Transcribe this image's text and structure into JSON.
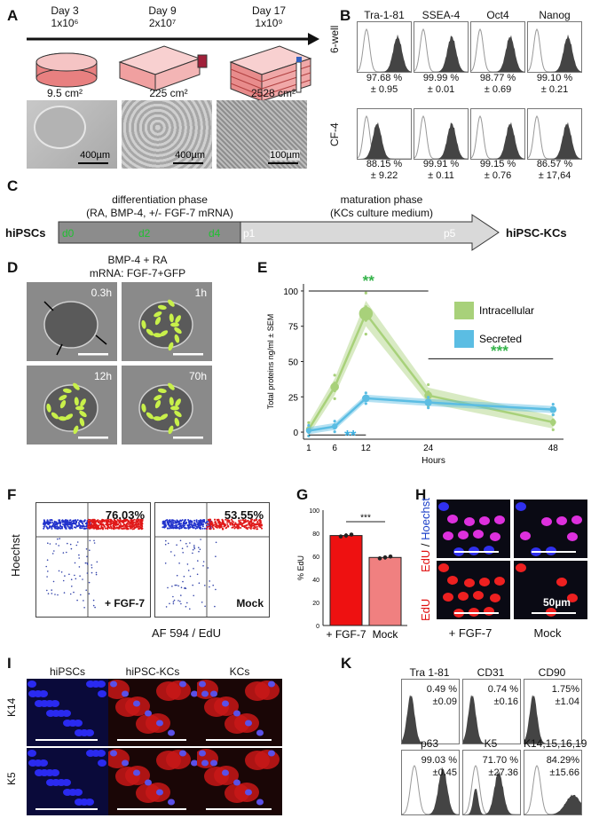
{
  "panels": {
    "A": "A",
    "B": "B",
    "C": "C",
    "D": "D",
    "E": "E",
    "F": "F",
    "G": "G",
    "H": "H",
    "I": "I",
    "K": "K"
  },
  "A": {
    "days": [
      {
        "day": "Day 3",
        "count": "1x10⁶",
        "area": "9.5 cm²",
        "scale": "400µm"
      },
      {
        "day": "Day 9",
        "count": "2x10⁷",
        "area": "225 cm²",
        "scale": "400µm"
      },
      {
        "day": "Day 17",
        "count": "1x10⁹",
        "area": "2528 cm²",
        "scale": "100µm"
      }
    ]
  },
  "B": {
    "markers": [
      "Tra-1-81",
      "SSEA-4",
      "Oct4",
      "Nanog"
    ],
    "rows": [
      {
        "label": "6-well",
        "values": [
          [
            "97.68 %",
            "± 0.95"
          ],
          [
            "99.99 %",
            "± 0.01"
          ],
          [
            "98.77 %",
            "± 0.69"
          ],
          [
            "99.10 %",
            "± 0.21"
          ]
        ]
      },
      {
        "label": "CF-4",
        "values": [
          [
            "88.15 %",
            "± 9.22"
          ],
          [
            "99.91 %",
            "± 0.11"
          ],
          [
            "99.15 %",
            "± 0.76"
          ],
          [
            "86.57 %",
            "± 17,64"
          ]
        ]
      }
    ]
  },
  "C": {
    "start": "hiPSCs",
    "end": "hiPSC-KCs",
    "phase1": "differentiation phase",
    "phase1_sub": "(RA, BMP-4, +/- FGF-7 mRNA)",
    "phase2": "maturation phase",
    "phase2_sub": "(KCs culture medium)",
    "marks": [
      "d0",
      "d2",
      "d4",
      "p1",
      "p5"
    ]
  },
  "D": {
    "title1": "BMP-4 + RA",
    "title2": "mRNA: FGF-7+GFP",
    "times": [
      "0.3h",
      "1h",
      "12h",
      "70h"
    ]
  },
  "E": {
    "ylabel": "Total proteins ng/ml ± SEM",
    "xlabel": "Hours",
    "sig_top": "**",
    "sig_bottom": "**",
    "sig_right": "***"
  },
  "F": {
    "ylabel": "Hoechst",
    "xlabel": "AF 594 / EdU",
    "plots": [
      {
        "pct": "76.03%",
        "cond": "+ FGF-7"
      },
      {
        "pct": "53.55%",
        "cond": "Mock"
      }
    ]
  },
  "G": {
    "ylabel": "% EdU",
    "sig": "***",
    "cats": [
      "+ FGF-7",
      "Mock"
    ]
  },
  "H": {
    "label_top_a": "EdU",
    "label_top_b": " / ",
    "label_top_c": "Hoechst",
    "label_bottom": "EdU",
    "scale": "50µm",
    "cats": [
      "+ FGF-7",
      "Mock"
    ]
  },
  "I": {
    "cols": [
      "hiPSCs",
      "hiPSC-KCs",
      "KCs"
    ],
    "rows": [
      "K14",
      "K5"
    ]
  },
  "K": {
    "panels": [
      {
        "name": "Tra 1-81",
        "v": "0.49 %",
        "sd": "±0.09"
      },
      {
        "name": "CD31",
        "v": "0.74 %",
        "sd": "±0.16"
      },
      {
        "name": "CD90",
        "v": "1.75%",
        "sd": "±1.04"
      },
      {
        "name": "p63",
        "v": "99.03 %",
        "sd": "±0.45"
      },
      {
        "name": "K5",
        "v": "71.70 %",
        "sd": "±27.36"
      },
      {
        "name": "K14,15,16,19",
        "v": "84.29%",
        "sd": "±15.66"
      }
    ]
  },
  "chart_data": [
    {
      "type": "line",
      "panel": "E",
      "xlabel": "Hours",
      "ylabel": "Total proteins ng/ml ± SEM",
      "x": [
        1,
        6,
        12,
        24,
        48
      ],
      "xticks": [
        1,
        6,
        12,
        24,
        48
      ],
      "yticks": [
        0,
        25,
        50,
        75,
        100
      ],
      "ylim": [
        -5,
        105
      ],
      "legend_position": "top-right",
      "series": [
        {
          "name": "Intracellular",
          "color": "#a8d17a",
          "values": [
            2,
            32,
            84,
            26,
            7
          ]
        },
        {
          "name": "Secreted",
          "color": "#5bbde3",
          "values": [
            1,
            4,
            24,
            21,
            16
          ]
        }
      ]
    },
    {
      "type": "bar",
      "panel": "G",
      "categories": [
        "+ FGF-7",
        "Mock"
      ],
      "values": [
        78,
        59
      ],
      "colors": [
        "#ee1111",
        "#f08080"
      ],
      "ylabel": "% EdU",
      "ylim": [
        0,
        100
      ],
      "yticks": [
        0,
        20,
        40,
        60,
        80,
        100
      ]
    }
  ]
}
